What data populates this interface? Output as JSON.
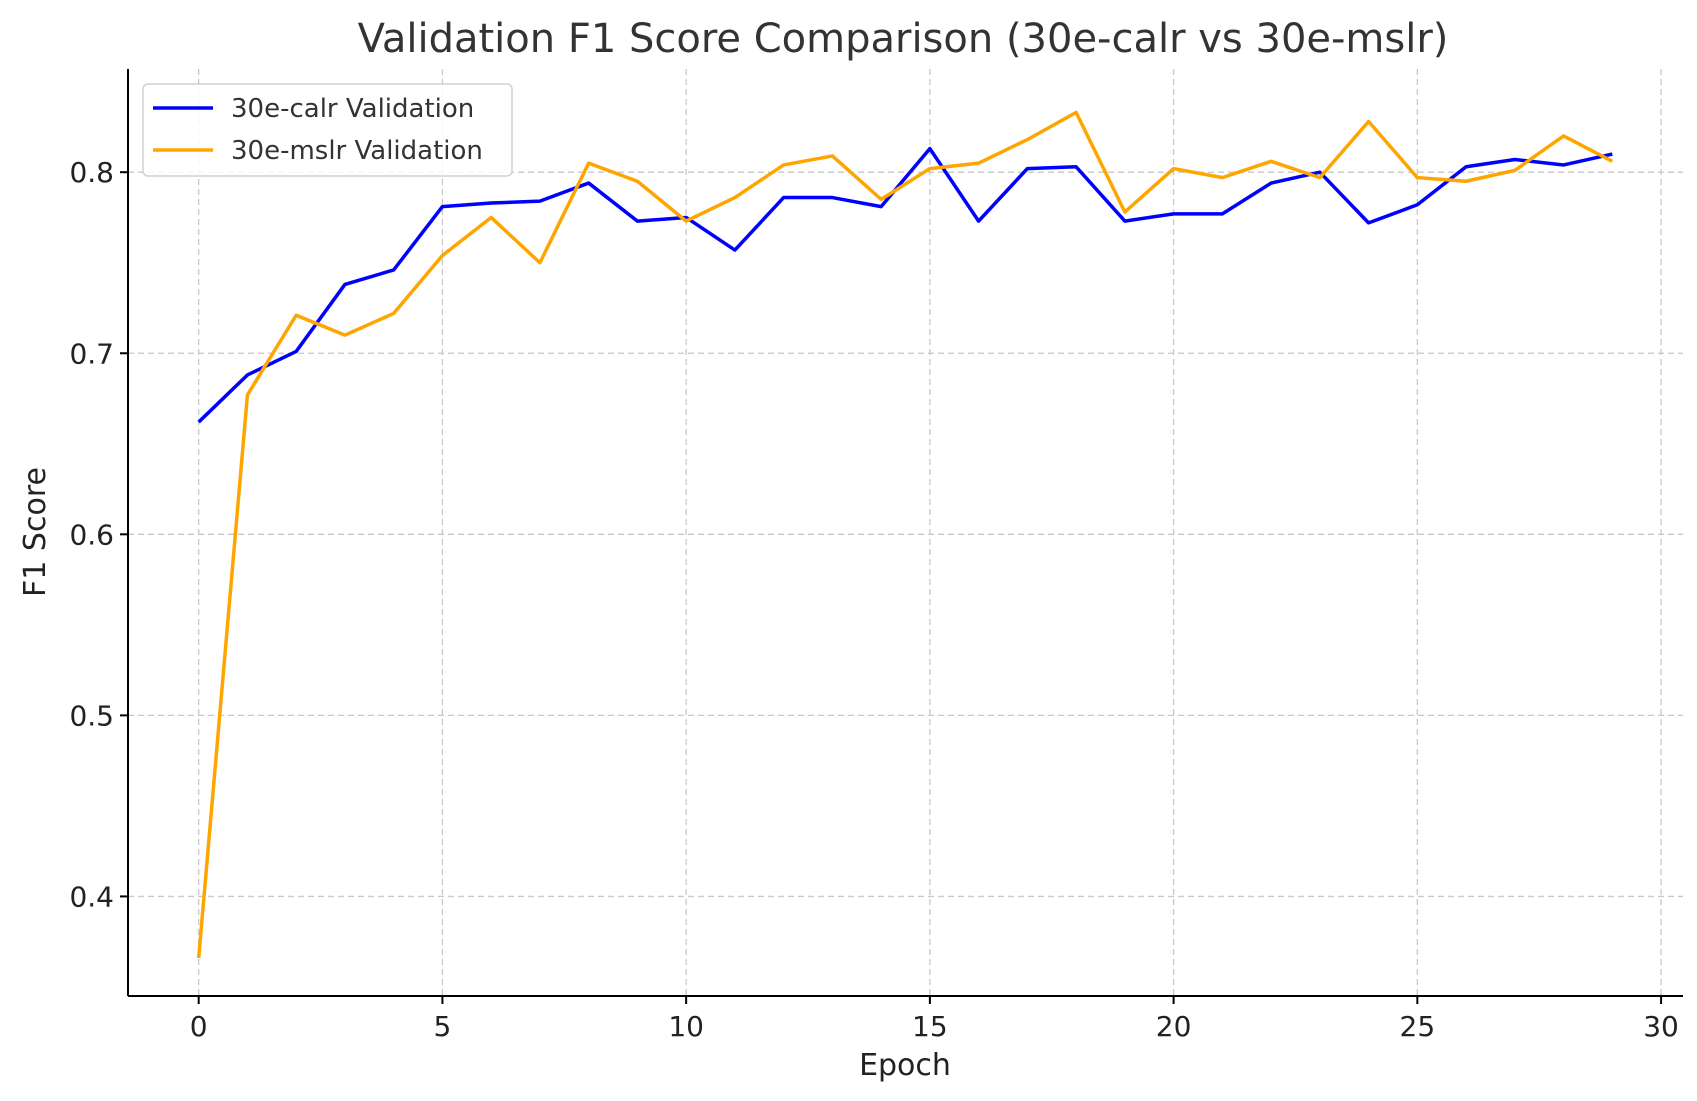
{
  "chart_data": {
    "type": "line",
    "title": "Validation F1 Score Comparison (30e-calr vs 30e-mslr)",
    "xlabel": "Epoch",
    "ylabel": "F1 Score",
    "xlim": [
      -1.45,
      30.45
    ],
    "ylim": [
      0.345,
      0.857
    ],
    "xticks": [
      0,
      5,
      10,
      15,
      20,
      25,
      30
    ],
    "xtick_labels": [
      "0",
      "5",
      "10",
      "15",
      "20",
      "25",
      "30"
    ],
    "yticks": [
      0.4,
      0.5,
      0.6,
      0.7,
      0.8
    ],
    "ytick_labels": [
      "0.4",
      "0.5",
      "0.6",
      "0.7",
      "0.8"
    ],
    "grid": true,
    "legend_position": "top-left",
    "x": [
      0,
      1,
      2,
      3,
      4,
      5,
      6,
      7,
      8,
      9,
      10,
      11,
      12,
      13,
      14,
      15,
      16,
      17,
      18,
      19,
      20,
      21,
      22,
      23,
      24,
      25,
      26,
      27,
      28,
      29
    ],
    "series": [
      {
        "name": "30e-calr Validation",
        "color": "#0000ff",
        "values": [
          0.662,
          0.688,
          0.701,
          0.738,
          0.746,
          0.781,
          0.783,
          0.784,
          0.794,
          0.773,
          0.775,
          0.757,
          0.786,
          0.786,
          0.781,
          0.813,
          0.773,
          0.802,
          0.803,
          0.773,
          0.777,
          0.777,
          0.794,
          0.8,
          0.772,
          0.782,
          0.803,
          0.807,
          0.804,
          0.81
        ]
      },
      {
        "name": "30e-mslr Validation",
        "color": "#ffa500",
        "values": [
          0.366,
          0.677,
          0.721,
          0.71,
          0.722,
          0.754,
          0.775,
          0.75,
          0.805,
          0.795,
          0.773,
          0.786,
          0.804,
          0.809,
          0.785,
          0.802,
          0.805,
          0.818,
          0.833,
          0.778,
          0.802,
          0.797,
          0.806,
          0.797,
          0.828,
          0.797,
          0.795,
          0.801,
          0.82,
          0.806
        ]
      }
    ]
  }
}
